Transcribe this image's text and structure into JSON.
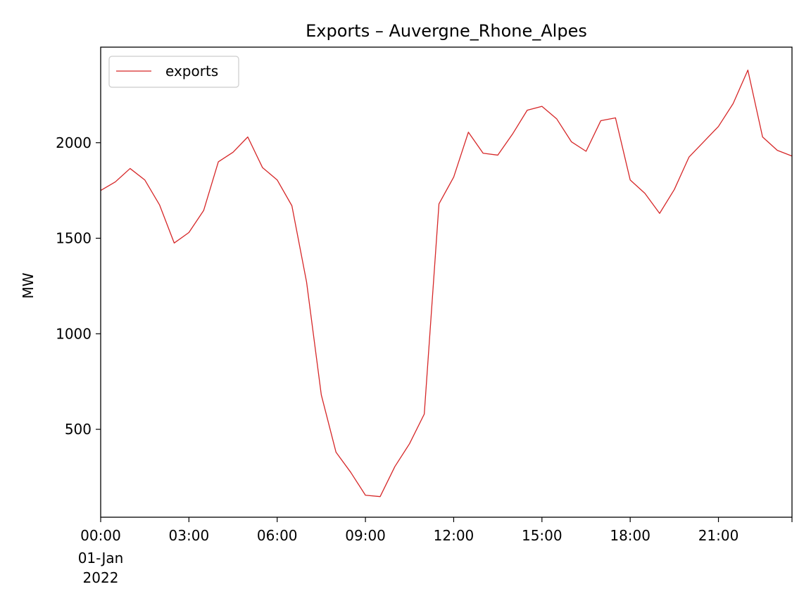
{
  "chart_data": {
    "type": "line",
    "title": "Exports – Auvergne_Rhone_Alpes",
    "xlabel": "",
    "ylabel": "MW",
    "x_start": "2022-01-01 00:00",
    "x_step_minutes": 30,
    "x_ticks": [
      {
        "hour": 0,
        "label": "00:00",
        "sublabel_1": "01-Jan",
        "sublabel_2": "2022"
      },
      {
        "hour": 3,
        "label": "03:00"
      },
      {
        "hour": 6,
        "label": "06:00"
      },
      {
        "hour": 9,
        "label": "09:00"
      },
      {
        "hour": 12,
        "label": "12:00"
      },
      {
        "hour": 15,
        "label": "15:00"
      },
      {
        "hour": 18,
        "label": "18:00"
      },
      {
        "hour": 21,
        "label": "21:00"
      }
    ],
    "xlim_hours": [
      0,
      23.5
    ],
    "ylim": [
      40,
      2500
    ],
    "y_ticks": [
      500,
      1000,
      1500,
      2000
    ],
    "grid": false,
    "legend": {
      "position": "top-left",
      "entries": [
        "exports"
      ]
    },
    "series": [
      {
        "name": "exports",
        "color": "#d62728",
        "values": [
          1750,
          1795,
          1865,
          1805,
          1675,
          1475,
          1530,
          1645,
          1900,
          1950,
          2030,
          1870,
          1805,
          1670,
          1270,
          680,
          380,
          275,
          155,
          148,
          305,
          425,
          580,
          1680,
          1820,
          2055,
          1945,
          1935,
          2045,
          2170,
          2190,
          2125,
          2005,
          1955,
          2115,
          2130,
          1805,
          1735,
          1630,
          1755,
          1925,
          2005,
          2085,
          2205,
          2380,
          2030,
          1960,
          1930
        ]
      }
    ]
  }
}
